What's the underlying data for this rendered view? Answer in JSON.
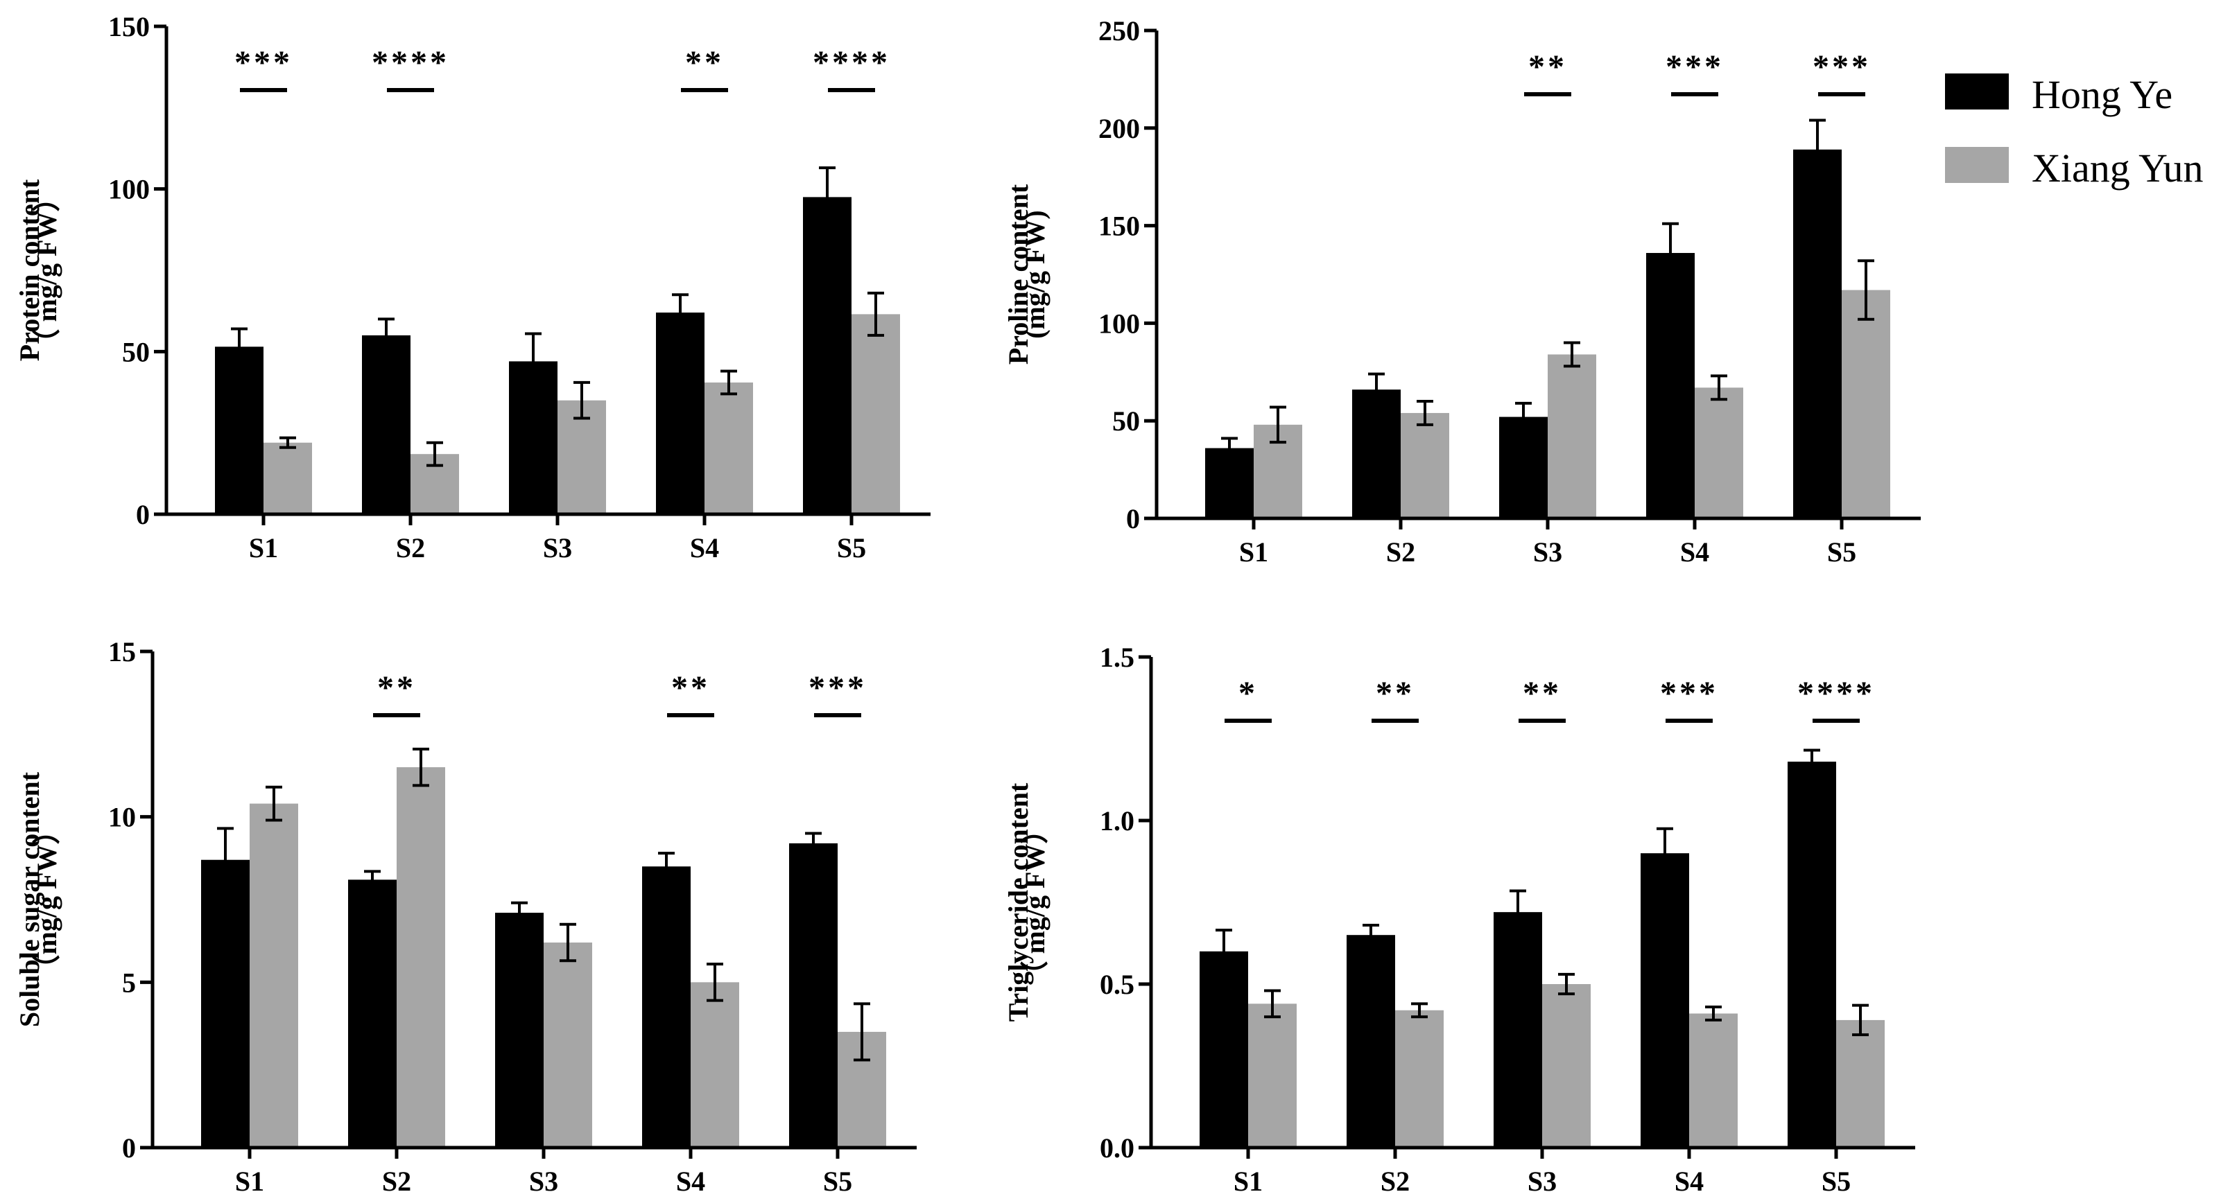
{
  "colors": {
    "hong_ye": "#000000",
    "xiang_yun": "#a6a6a6",
    "axis": "#000000"
  },
  "legend": {
    "entries": [
      {
        "label": "Hong Ye",
        "color": "#000000"
      },
      {
        "label": "Xiang Yun",
        "color": "#a6a6a6"
      }
    ]
  },
  "chart_data": [
    {
      "type": "bar",
      "panel": "top-left",
      "categories": [
        "S1",
        "S2",
        "S3",
        "S4",
        "S5"
      ],
      "series": [
        {
          "name": "Hong Ye",
          "values": [
            51.5,
            55,
            47,
            62,
            97.5
          ],
          "errors": [
            5.5,
            5,
            8.5,
            5.5,
            9
          ]
        },
        {
          "name": "Xiang Yun",
          "values": [
            22,
            18.5,
            35,
            40.5,
            61.5
          ],
          "errors": [
            1.5,
            3.5,
            5.5,
            3.5,
            6.5
          ]
        }
      ],
      "ylabel": "Protein content",
      "ylabel_unit": "（  mg/g FW）",
      "ylim": [
        0,
        150
      ],
      "yticks": [
        "0",
        "50",
        "100",
        "150"
      ],
      "significance": [
        "***",
        "****",
        "",
        "**",
        "****"
      ]
    },
    {
      "type": "bar",
      "panel": "top-right",
      "categories": [
        "S1",
        "S2",
        "S3",
        "S4",
        "S5"
      ],
      "series": [
        {
          "name": "Hong Ye",
          "values": [
            36,
            66,
            52,
            136,
            189
          ],
          "errors": [
            5,
            8,
            7,
            15,
            15
          ]
        },
        {
          "name": "Xiang Yun",
          "values": [
            48,
            54,
            84,
            67,
            117
          ],
          "errors": [
            9,
            6,
            6,
            6,
            15
          ]
        }
      ],
      "ylabel": "Proline content",
      "ylabel_unit": "(mg/g FW)",
      "ylim": [
        0,
        250
      ],
      "yticks": [
        "0",
        "50",
        "100",
        "150",
        "200",
        "250"
      ],
      "significance": [
        "",
        "",
        "**",
        "***",
        "***"
      ]
    },
    {
      "type": "bar",
      "panel": "bottom-left",
      "categories": [
        "S1",
        "S2",
        "S3",
        "S4",
        "S5"
      ],
      "series": [
        {
          "name": "Hong Ye",
          "values": [
            8.7,
            8.1,
            7.1,
            8.5,
            9.2
          ],
          "errors": [
            0.95,
            0.25,
            0.3,
            0.4,
            0.3
          ]
        },
        {
          "name": "Xiang Yun",
          "values": [
            10.4,
            11.5,
            6.2,
            5.0,
            3.5
          ],
          "errors": [
            0.5,
            0.55,
            0.55,
            0.55,
            0.85
          ]
        }
      ],
      "ylabel": "Soluble sugar content",
      "ylabel_unit": "（mg/g FW）",
      "ylim": [
        0,
        15
      ],
      "yticks": [
        "0",
        "5",
        "10",
        "15"
      ],
      "significance": [
        "",
        "**",
        "",
        "**",
        "***"
      ]
    },
    {
      "type": "bar",
      "panel": "bottom-right",
      "categories": [
        "S1",
        "S2",
        "S3",
        "S4",
        "S5"
      ],
      "series": [
        {
          "name": "Hong Ye",
          "values": [
            0.6,
            0.65,
            0.72,
            0.9,
            1.18
          ],
          "errors": [
            0.065,
            0.03,
            0.065,
            0.075,
            0.035
          ]
        },
        {
          "name": "Xiang Yun",
          "values": [
            0.44,
            0.42,
            0.5,
            0.41,
            0.39
          ],
          "errors": [
            0.04,
            0.02,
            0.03,
            0.02,
            0.045
          ]
        }
      ],
      "ylabel": "Triglyceride content",
      "ylabel_unit": "（  mg/g FW）",
      "ylim": [
        0,
        1.5
      ],
      "yticks": [
        "0.0",
        "0.5",
        "1.0",
        "1.5"
      ],
      "significance": [
        "*",
        "**",
        "**",
        "***",
        "****"
      ]
    }
  ]
}
